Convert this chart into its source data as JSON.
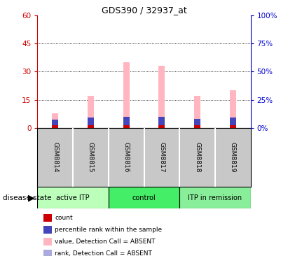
{
  "title": "GDS390 / 32937_at",
  "samples": [
    "GSM8814",
    "GSM8815",
    "GSM8816",
    "GSM8817",
    "GSM8818",
    "GSM8819"
  ],
  "pink_bar_heights": [
    8.0,
    17.0,
    35.0,
    33.0,
    17.0,
    20.0
  ],
  "red_bar_heights": [
    1.5,
    1.5,
    1.5,
    1.5,
    1.5,
    1.5
  ],
  "blue_bar_heights": [
    3.0,
    4.0,
    4.5,
    4.5,
    3.5,
    4.0
  ],
  "ylim_left": [
    0,
    60
  ],
  "ylim_right": [
    0,
    100
  ],
  "yticks_left": [
    0,
    15,
    30,
    45,
    60
  ],
  "yticks_right": [
    0,
    25,
    50,
    75,
    100
  ],
  "ytick_labels_left": [
    "0",
    "15",
    "30",
    "45",
    "60"
  ],
  "ytick_labels_right": [
    "0%",
    "25%",
    "50%",
    "75%",
    "100%"
  ],
  "left_axis_color": "#CC0000",
  "right_axis_color": "#0000CC",
  "bar_bg_color": "#C8C8C8",
  "pink_color": "#FFB6C1",
  "red_color": "#CC0000",
  "blue_color": "#4444BB",
  "blue_light_color": "#AAAADD",
  "group_configs": [
    {
      "indices": [
        0,
        1
      ],
      "label": "active ITP",
      "color": "#BBFFBB"
    },
    {
      "indices": [
        2,
        3
      ],
      "label": "control",
      "color": "#44EE66"
    },
    {
      "indices": [
        4,
        5
      ],
      "label": "ITP in remission",
      "color": "#88EE99"
    }
  ],
  "legend_items": [
    {
      "color": "#CC0000",
      "label": "count"
    },
    {
      "color": "#4444BB",
      "label": "percentile rank within the sample"
    },
    {
      "color": "#FFB6C1",
      "label": "value, Detection Call = ABSENT"
    },
    {
      "color": "#AAAADD",
      "label": "rank, Detection Call = ABSENT"
    }
  ]
}
